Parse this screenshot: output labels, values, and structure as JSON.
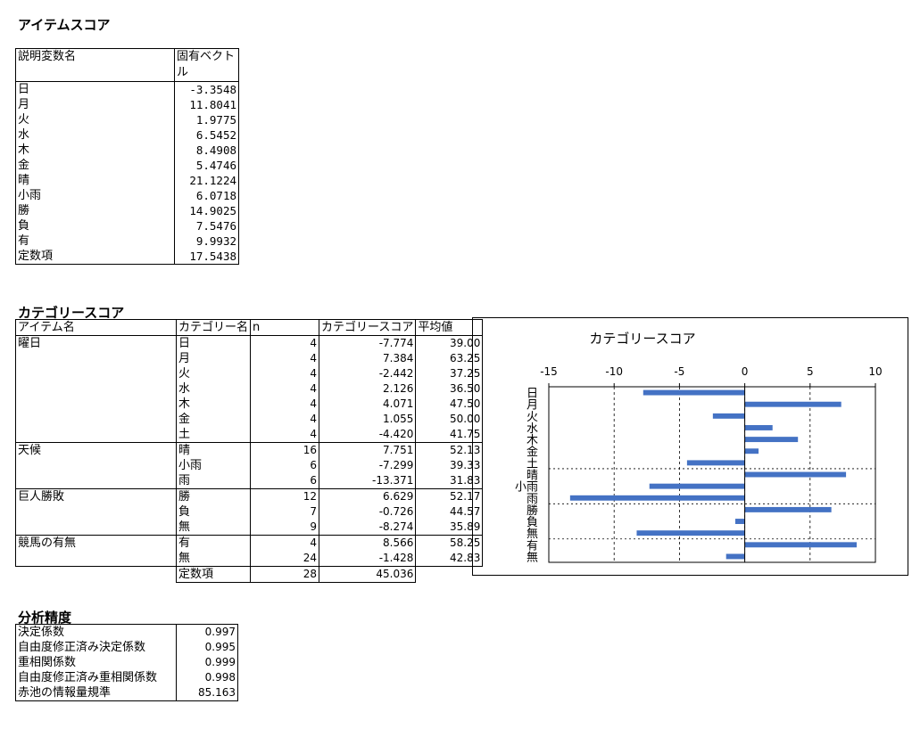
{
  "item_score": {
    "title": "アイテムスコア",
    "headers": [
      "説明変数名",
      "固有ベクトル"
    ],
    "rows": [
      [
        "日",
        "-3.3548"
      ],
      [
        "月",
        "11.8041"
      ],
      [
        "火",
        "1.9775"
      ],
      [
        "水",
        "6.5452"
      ],
      [
        "木",
        "8.4908"
      ],
      [
        "金",
        "5.4746"
      ],
      [
        "晴",
        "21.1224"
      ],
      [
        "小雨",
        "6.0718"
      ],
      [
        "勝",
        "14.9025"
      ],
      [
        "負",
        "7.5476"
      ],
      [
        "有",
        "9.9932"
      ],
      [
        "定数項",
        "17.5438"
      ]
    ]
  },
  "category_score": {
    "title": "カテゴリースコア",
    "headers": [
      "アイテム名",
      "カテゴリー名",
      "n",
      "カテゴリースコア",
      "平均値"
    ],
    "groups": [
      {
        "name": "曜日",
        "rows": [
          [
            "日",
            "4",
            "-7.774",
            "39.00"
          ],
          [
            "月",
            "4",
            "7.384",
            "63.25"
          ],
          [
            "火",
            "4",
            "-2.442",
            "37.25"
          ],
          [
            "水",
            "4",
            "2.126",
            "36.50"
          ],
          [
            "木",
            "4",
            "4.071",
            "47.50"
          ],
          [
            "金",
            "4",
            "1.055",
            "50.00"
          ],
          [
            "土",
            "4",
            "-4.420",
            "41.75"
          ]
        ]
      },
      {
        "name": "天候",
        "rows": [
          [
            "晴",
            "16",
            "7.751",
            "52.13"
          ],
          [
            "小雨",
            "6",
            "-7.299",
            "39.33"
          ],
          [
            "雨",
            "6",
            "-13.371",
            "31.83"
          ]
        ]
      },
      {
        "name": "巨人勝敗",
        "rows": [
          [
            "勝",
            "12",
            "6.629",
            "52.17"
          ],
          [
            "負",
            "7",
            "-0.726",
            "44.57"
          ],
          [
            "無",
            "9",
            "-8.274",
            "35.89"
          ]
        ]
      },
      {
        "name": "競馬の有無",
        "rows": [
          [
            "有",
            "4",
            "8.566",
            "58.25"
          ],
          [
            "無",
            "24",
            "-1.428",
            "42.83"
          ]
        ]
      }
    ],
    "constant": [
      "定数項",
      "28",
      "45.036"
    ]
  },
  "precision": {
    "title": "分析精度",
    "rows": [
      [
        "決定係数",
        "0.997"
      ],
      [
        "自由度修正済み決定係数",
        "0.995"
      ],
      [
        "重相関係数",
        "0.999"
      ],
      [
        "自由度修正済み重相関係数",
        "0.998"
      ],
      [
        "赤池の情報量規準",
        "85.163"
      ]
    ]
  },
  "chart_data": {
    "type": "bar",
    "orientation": "horizontal",
    "title": "カテゴリースコア",
    "categories": [
      "日",
      "月",
      "火",
      "水",
      "木",
      "金",
      "土",
      "晴",
      "小雨",
      "雨",
      "勝",
      "負",
      "無",
      "有",
      "無"
    ],
    "values": [
      -7.774,
      7.384,
      -2.442,
      2.126,
      4.071,
      1.055,
      -4.42,
      7.751,
      -7.299,
      -13.371,
      6.629,
      -0.726,
      -8.274,
      8.566,
      -1.428
    ],
    "group_boundaries_after": [
      6,
      9,
      12
    ],
    "xlim": [
      -15,
      10
    ],
    "xticks": [
      "-15",
      "-10",
      "-5",
      "0",
      "5",
      "10"
    ],
    "xaxis_position": "top",
    "grid": "vertical dashed",
    "bar_color": "#4472C4"
  }
}
